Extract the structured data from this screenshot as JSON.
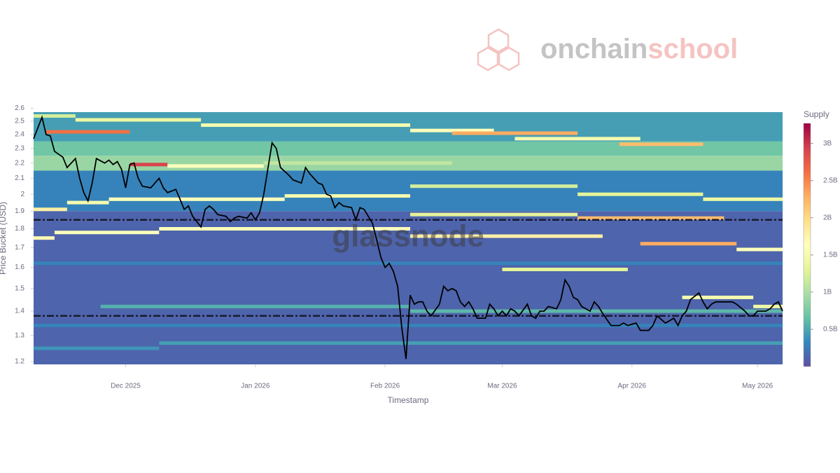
{
  "chart_data": {
    "type": "heatmap",
    "brand": [
      "onchain",
      "school"
    ],
    "watermark": "glassnode",
    "x_label": "Timestamp",
    "y_label": "Price Bucket (USD)",
    "log_y": true,
    "xlim": [
      0,
      179
    ],
    "xticks": [
      {
        "value": 22,
        "label": "Dec 2025"
      },
      {
        "value": 53,
        "label": "Jan 2026"
      },
      {
        "value": 84,
        "label": "Feb 2026"
      },
      {
        "value": 112,
        "label": "Mar 2026"
      },
      {
        "value": 143,
        "label": "Apr 2026"
      },
      {
        "value": 173,
        "label": "May 2026"
      }
    ],
    "ylim": [
      1.19,
      2.57
    ],
    "yticks": [
      1.2,
      1.3,
      1.4,
      1.5,
      1.6,
      1.7,
      1.8,
      1.9,
      2,
      2.1,
      2.2,
      2.3,
      2.4,
      2.5,
      2.6
    ],
    "colorbar": {
      "title": "Supply",
      "zlim": [
        0,
        3.27
      ],
      "ticks": [
        {
          "value": 0.5,
          "label": "0.5B"
        },
        {
          "value": 1,
          "label": "1B"
        },
        {
          "value": 1.5,
          "label": "1.5B"
        },
        {
          "value": 2,
          "label": "2B"
        },
        {
          "value": 2.5,
          "label": "2.5B"
        },
        {
          "value": 3,
          "label": "3B"
        }
      ],
      "colorscale": [
        "#5e4fa2",
        "#3288bd",
        "#66c2a5",
        "#abdda4",
        "#e6f598",
        "#ffffbf",
        "#fee08b",
        "#fdae61",
        "#f46d43",
        "#d53e4f",
        "#9e0142"
      ]
    },
    "heatmap": {
      "rows": [
        {
          "y": [
            1.19,
            1.9
          ],
          "z": 0.12
        },
        {
          "y": [
            1.9,
            2.15
          ],
          "z": 0.3
        },
        {
          "y": [
            2.15,
            2.25
          ],
          "z": 0.9
        },
        {
          "y": [
            2.25,
            2.35
          ],
          "z": 0.7
        },
        {
          "y": [
            2.35,
            2.57
          ],
          "z": 0.45
        }
      ],
      "segments": [
        {
          "y": 2.42,
          "x": [
            3,
            23
          ],
          "z": 2.6
        },
        {
          "y": 2.19,
          "x": [
            23,
            32
          ],
          "z": 2.9
        },
        {
          "y": 2.18,
          "x": [
            32,
            55
          ],
          "z": 1.6
        },
        {
          "y": 2.54,
          "x": [
            0,
            10
          ],
          "z": 1.2
        },
        {
          "y": 2.51,
          "x": [
            10,
            40
          ],
          "z": 1.4
        },
        {
          "y": 2.47,
          "x": [
            40,
            90
          ],
          "z": 1.5
        },
        {
          "y": 2.43,
          "x": [
            90,
            110
          ],
          "z": 1.6
        },
        {
          "y": 2.41,
          "x": [
            100,
            130
          ],
          "z": 2.3
        },
        {
          "y": 2.37,
          "x": [
            115,
            145
          ],
          "z": 1.5
        },
        {
          "y": 2.33,
          "x": [
            140,
            160
          ],
          "z": 2.2
        },
        {
          "y": 2.2,
          "x": [
            55,
            100
          ],
          "z": 1.1
        },
        {
          "y": 1.97,
          "x": [
            18,
            60
          ],
          "z": 1.6
        },
        {
          "y": 1.99,
          "x": [
            60,
            90
          ],
          "z": 1.5
        },
        {
          "y": 2.05,
          "x": [
            90,
            130
          ],
          "z": 1.2
        },
        {
          "y": 2.0,
          "x": [
            130,
            160
          ],
          "z": 1.3
        },
        {
          "y": 1.97,
          "x": [
            160,
            179
          ],
          "z": 1.4
        },
        {
          "y": 1.95,
          "x": [
            8,
            18
          ],
          "z": 1.5
        },
        {
          "y": 1.91,
          "x": [
            0,
            8
          ],
          "z": 1.8
        },
        {
          "y": 1.88,
          "x": [
            90,
            130
          ],
          "z": 1.3
        },
        {
          "y": 1.86,
          "x": [
            130,
            165
          ],
          "z": 2.2
        },
        {
          "y": 1.8,
          "x": [
            30,
            90
          ],
          "z": 1.6
        },
        {
          "y": 1.78,
          "x": [
            5,
            30
          ],
          "z": 1.6
        },
        {
          "y": 1.75,
          "x": [
            0,
            5
          ],
          "z": 1.7
        },
        {
          "y": 1.76,
          "x": [
            90,
            136
          ],
          "z": 1.8
        },
        {
          "y": 1.72,
          "x": [
            145,
            168
          ],
          "z": 2.3
        },
        {
          "y": 1.69,
          "x": [
            168,
            179
          ],
          "z": 1.6
        },
        {
          "y": 1.59,
          "x": [
            112,
            142
          ],
          "z": 1.3
        },
        {
          "y": 1.46,
          "x": [
            155,
            172
          ],
          "z": 1.5
        },
        {
          "y": 1.42,
          "x": [
            172,
            179
          ],
          "z": 1.4
        },
        {
          "y": 1.42,
          "x": [
            16,
            90
          ],
          "z": 0.55
        },
        {
          "y": 1.4,
          "x": [
            90,
            179
          ],
          "z": 0.6
        },
        {
          "y": 1.27,
          "x": [
            30,
            179
          ],
          "z": 0.45
        },
        {
          "y": 1.25,
          "x": [
            0,
            30
          ],
          "z": 0.4
        },
        {
          "y": 1.34,
          "x": [
            0,
            179
          ],
          "z": 0.3
        },
        {
          "y": 1.62,
          "x": [
            0,
            179
          ],
          "z": 0.3
        }
      ]
    },
    "line": {
      "color": "#000000",
      "x": [
        0,
        2,
        3,
        4,
        5,
        7,
        8,
        10,
        11,
        12,
        13,
        14,
        15,
        17,
        18,
        19,
        20,
        21,
        22,
        23,
        24,
        25,
        26,
        28,
        29,
        30,
        31,
        32,
        34,
        35,
        36,
        37,
        38,
        40,
        41,
        42,
        43,
        44,
        46,
        47,
        48,
        49,
        51,
        52,
        53,
        54,
        55,
        57,
        58,
        59,
        61,
        62,
        64,
        65,
        66,
        68,
        69,
        70,
        71,
        72,
        73,
        74,
        76,
        77,
        78,
        79,
        81,
        82,
        83,
        84,
        85,
        86,
        87,
        88,
        89,
        90,
        91,
        92,
        93,
        94,
        95,
        97,
        98,
        99,
        100,
        101,
        102,
        103,
        104,
        105,
        106,
        108,
        109,
        110,
        111,
        112,
        113,
        114,
        115,
        116,
        118,
        119,
        120,
        121,
        122,
        123,
        125,
        126,
        127,
        128,
        129,
        130,
        131,
        133,
        134,
        135,
        136,
        138,
        139,
        140,
        141,
        142,
        144,
        145,
        146,
        147,
        148,
        149,
        151,
        152,
        153,
        154,
        155,
        156,
        157,
        159,
        160,
        161,
        162,
        163,
        164,
        166,
        167,
        168,
        170,
        171,
        172,
        173,
        175,
        176,
        177,
        178,
        179
      ],
      "y": [
        2.37,
        2.53,
        2.4,
        2.39,
        2.28,
        2.24,
        2.17,
        2.23,
        2.1,
        2.01,
        1.96,
        2.07,
        2.23,
        2.2,
        2.22,
        2.19,
        2.21,
        2.16,
        2.04,
        2.19,
        2.2,
        2.1,
        2.05,
        2.04,
        2.07,
        2.1,
        2.04,
        2.01,
        2.03,
        1.97,
        1.91,
        1.93,
        1.87,
        1.81,
        1.91,
        1.93,
        1.91,
        1.88,
        1.87,
        1.84,
        1.86,
        1.87,
        1.86,
        1.89,
        1.85,
        1.89,
        2.0,
        2.34,
        2.3,
        2.17,
        2.12,
        2.09,
        2.07,
        2.17,
        2.13,
        2.07,
        2.06,
        2.0,
        1.99,
        1.92,
        1.95,
        1.93,
        1.92,
        1.85,
        1.92,
        1.91,
        1.83,
        1.74,
        1.65,
        1.6,
        1.62,
        1.58,
        1.51,
        1.33,
        1.21,
        1.47,
        1.43,
        1.44,
        1.44,
        1.4,
        1.38,
        1.43,
        1.51,
        1.49,
        1.5,
        1.49,
        1.44,
        1.42,
        1.44,
        1.41,
        1.37,
        1.37,
        1.43,
        1.41,
        1.38,
        1.4,
        1.38,
        1.41,
        1.4,
        1.38,
        1.43,
        1.38,
        1.37,
        1.4,
        1.4,
        1.42,
        1.41,
        1.45,
        1.54,
        1.51,
        1.46,
        1.45,
        1.42,
        1.4,
        1.44,
        1.42,
        1.39,
        1.34,
        1.34,
        1.34,
        1.35,
        1.34,
        1.35,
        1.32,
        1.32,
        1.32,
        1.34,
        1.38,
        1.35,
        1.36,
        1.37,
        1.34,
        1.38,
        1.4,
        1.45,
        1.48,
        1.44,
        1.41,
        1.43,
        1.44,
        1.44,
        1.44,
        1.44,
        1.43,
        1.4,
        1.38,
        1.38,
        1.4,
        1.4,
        1.41,
        1.43,
        1.44,
        1.4
      ]
    },
    "hlines": {
      "values": [
        1.85,
        1.38
      ],
      "color": "#1a1a2e"
    }
  }
}
